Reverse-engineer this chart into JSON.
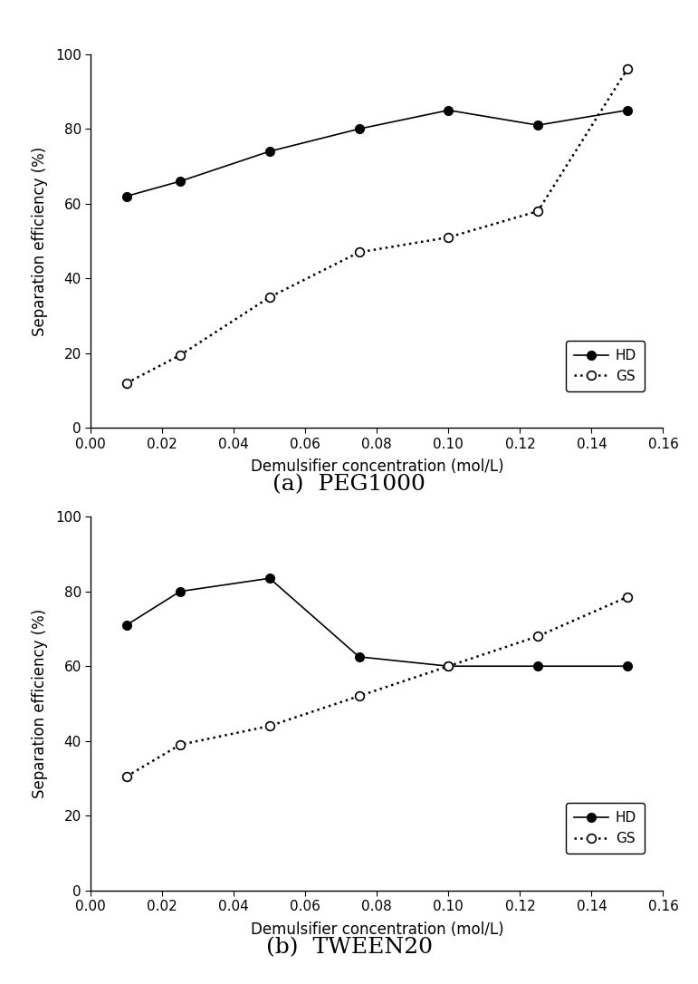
{
  "subplot_a": {
    "title": "(a)  PEG1000",
    "HD_x": [
      0.01,
      0.025,
      0.05,
      0.075,
      0.1,
      0.125,
      0.15
    ],
    "HD_y": [
      62,
      66,
      74,
      80,
      85,
      81,
      85
    ],
    "GS_x": [
      0.01,
      0.025,
      0.05,
      0.075,
      0.1,
      0.125,
      0.15
    ],
    "GS_y": [
      12,
      19.5,
      35,
      47,
      51,
      58,
      96
    ]
  },
  "subplot_b": {
    "title": "(b)  TWEEN20",
    "HD_x": [
      0.01,
      0.025,
      0.05,
      0.075,
      0.1,
      0.125,
      0.15
    ],
    "HD_y": [
      71,
      80,
      83.5,
      62.5,
      60,
      60,
      60
    ],
    "GS_x": [
      0.01,
      0.025,
      0.05,
      0.075,
      0.1,
      0.125,
      0.15
    ],
    "GS_y": [
      30.5,
      39,
      44,
      52,
      60,
      68,
      78.5
    ]
  },
  "xlabel": "Demulsifier concentration (mol/L)",
  "ylabel": "Separation efficiency (%)",
  "xlim": [
    0.0,
    0.16
  ],
  "ylim": [
    0,
    100
  ],
  "xticks": [
    0.0,
    0.02,
    0.04,
    0.06,
    0.08,
    0.1,
    0.12,
    0.14,
    0.16
  ],
  "yticks": [
    0,
    20,
    40,
    60,
    80,
    100
  ],
  "legend_HD": "HD",
  "legend_GS": "GS",
  "hd_color": "#000000",
  "gs_color": "#000000",
  "background_color": "#ffffff",
  "subtitle_fontsize": 18,
  "label_fontsize": 12,
  "tick_fontsize": 11,
  "legend_fontsize": 11
}
